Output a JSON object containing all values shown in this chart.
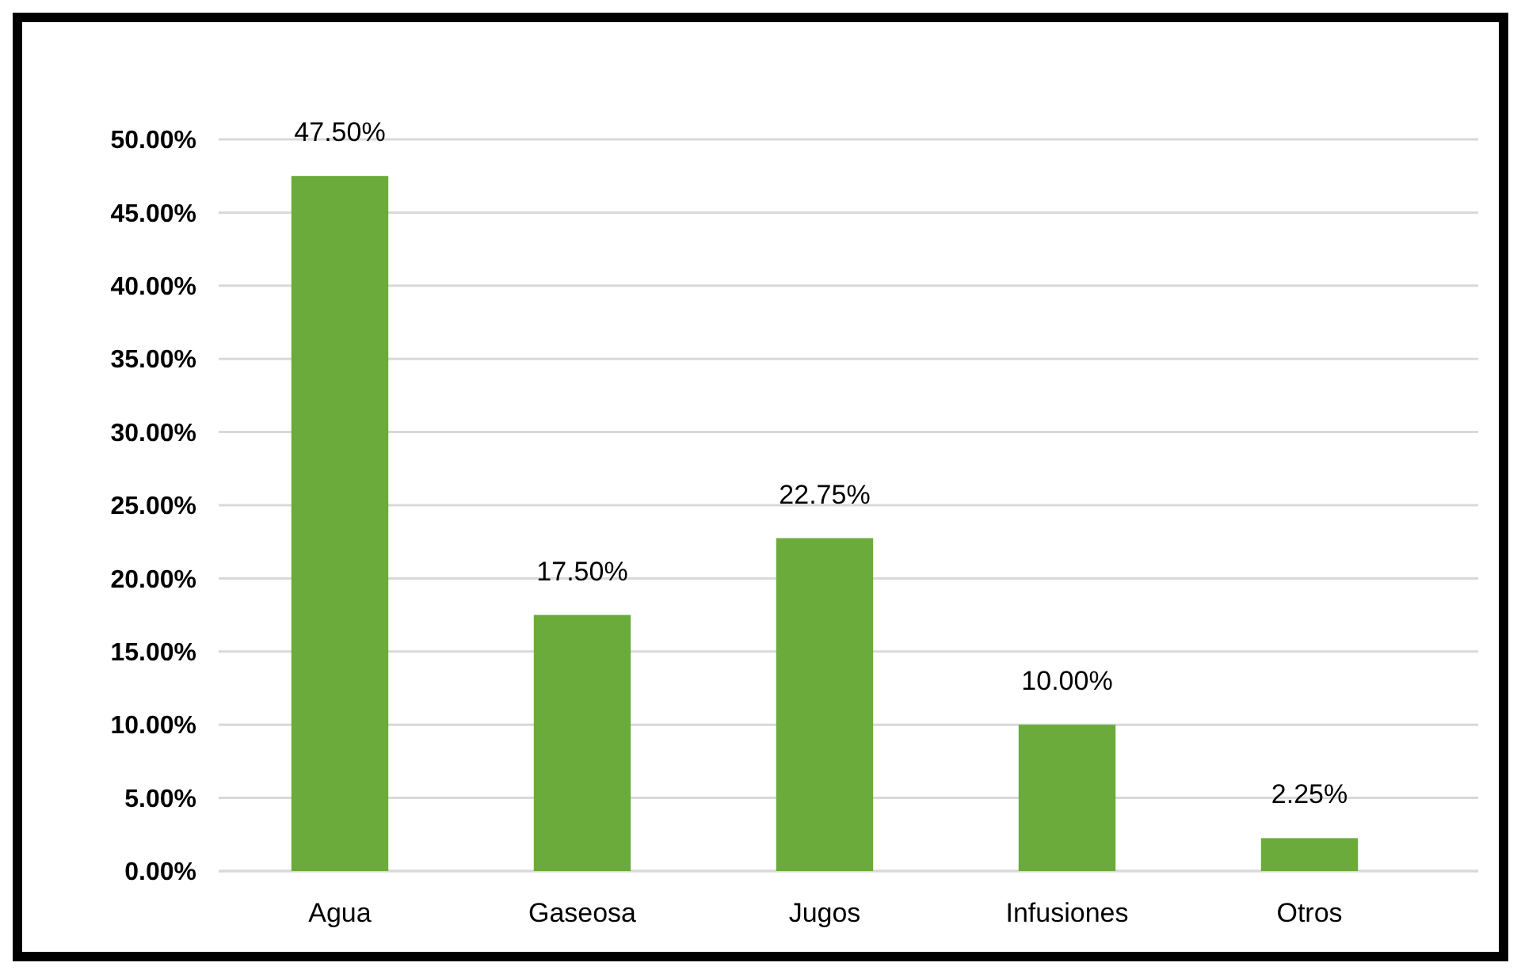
{
  "chart_data": {
    "type": "bar",
    "categories": [
      "Agua",
      "Gaseosa",
      "Jugos",
      "Infusiones",
      "Otros"
    ],
    "values": [
      47.5,
      17.5,
      22.75,
      10,
      2.25
    ],
    "value_labels": [
      "47.50%",
      "17.50%",
      "22.75%",
      "10.00%",
      "2.25%"
    ],
    "color": "#6aab3c",
    "ylim": [
      0,
      50
    ],
    "yticks": [
      {
        "value": 0,
        "label": "0.00%"
      },
      {
        "value": 5,
        "label": "5.00%"
      },
      {
        "value": 10,
        "label": "10.00%"
      },
      {
        "value": 15,
        "label": "15.00%"
      },
      {
        "value": 20,
        "label": "20.00%"
      },
      {
        "value": 25,
        "label": "25.00%"
      },
      {
        "value": 30,
        "label": "30.00%"
      },
      {
        "value": 35,
        "label": "35.00%"
      },
      {
        "value": 40,
        "label": "40.00%"
      },
      {
        "value": 45,
        "label": "45.00%"
      },
      {
        "value": 50,
        "label": "50.00%"
      }
    ],
    "grid": "y"
  }
}
